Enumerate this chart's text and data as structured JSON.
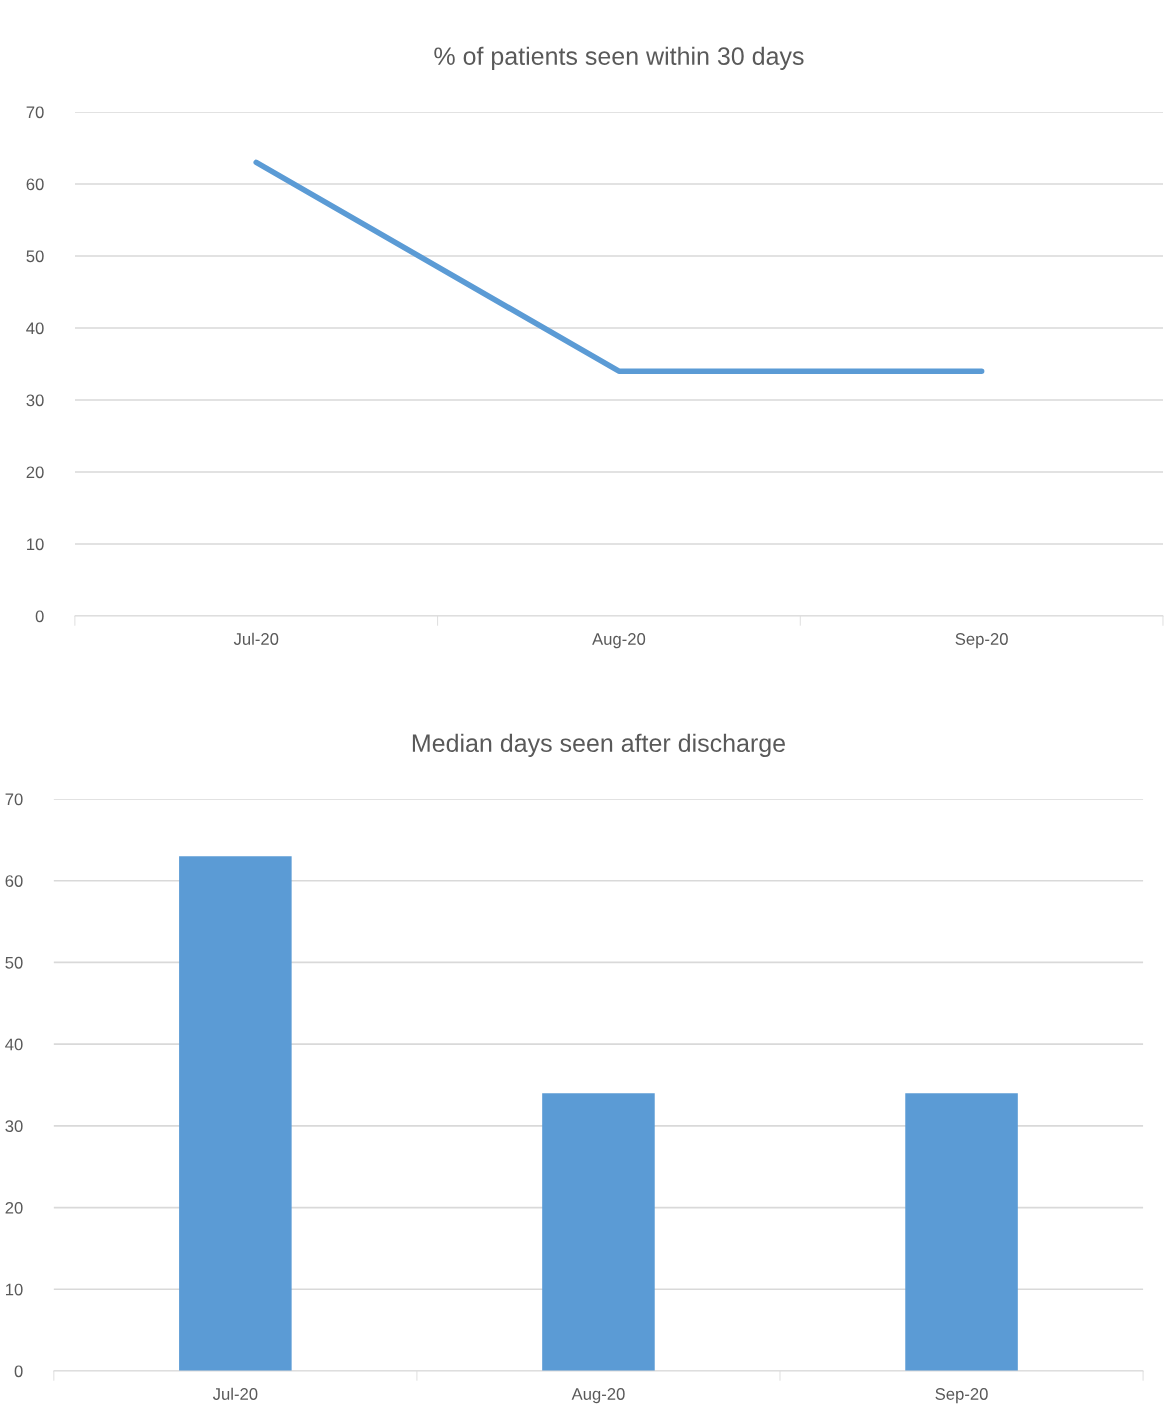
{
  "chart_data": [
    {
      "type": "line",
      "title": "% of patients seen within 30 days",
      "categories": [
        "Jul-20",
        "Aug-20",
        "Sep-20"
      ],
      "values": [
        63,
        34,
        34
      ],
      "color": "#5b9bd5",
      "ylim": [
        0,
        70
      ],
      "yticks": [
        0,
        10,
        20,
        30,
        40,
        50,
        60,
        70
      ],
      "grid": "y",
      "legend": false,
      "marker": "none",
      "line_style": "solid"
    },
    {
      "type": "bar",
      "title": "Median days seen after discharge",
      "categories": [
        "Jul-20",
        "Aug-20",
        "Sep-20"
      ],
      "values": [
        63,
        34,
        34
      ],
      "color": "#5b9bd5",
      "ylim": [
        0,
        70
      ],
      "yticks": [
        0,
        10,
        20,
        30,
        40,
        50,
        60,
        70
      ],
      "grid": "y",
      "legend": false
    }
  ]
}
